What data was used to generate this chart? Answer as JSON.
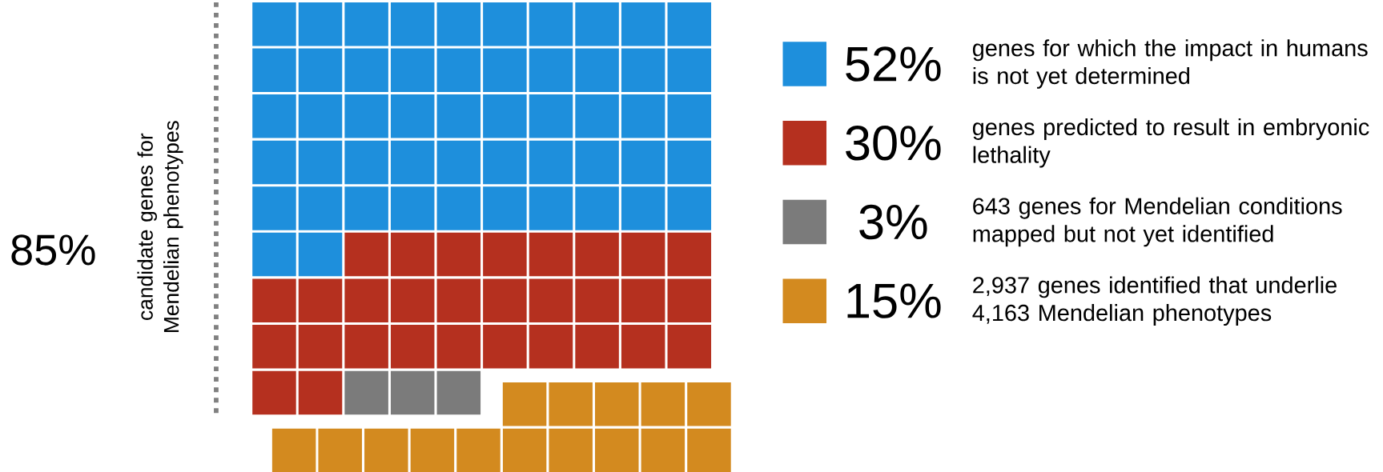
{
  "chart_data": {
    "type": "other",
    "categories": [
      "genes for which the impact in humans is not yet determined",
      "genes predicted to result in embryonic lethality",
      "643 genes for Mendelian conditions mapped but not yet identified",
      "2,937 genes identified that underlie 4,163 Mendelian phenotypes"
    ],
    "values": [
      52,
      30,
      3,
      15
    ],
    "value_labels": [
      "52%",
      "30%",
      "3%",
      "15%"
    ],
    "colors": [
      "#1e8fdc",
      "#b5301f",
      "#7b7b7b",
      "#d38a1f"
    ],
    "ylabel": "candidate genes for Mendelian phenotypes",
    "annotations": [
      "85%"
    ]
  }
}
